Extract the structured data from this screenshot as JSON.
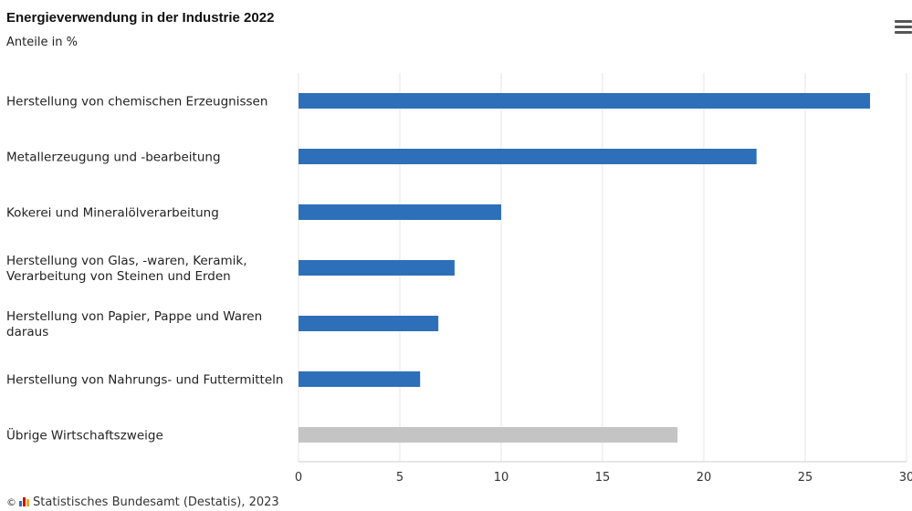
{
  "chart_data": {
    "type": "bar",
    "orientation": "horizontal",
    "title": "Energieverwendung in der Industrie 2022",
    "subtitle": "Anteile in %",
    "categories": [
      [
        "Herstellung von chemischen Erzeugnissen"
      ],
      [
        "Metallerzeugung und -bearbeitung"
      ],
      [
        "Kokerei und Mineralölverarbeitung"
      ],
      [
        "Herstellung von Glas, -waren, Keramik,",
        "Verarbeitung von Steinen und Erden"
      ],
      [
        "Herstellung von Papier, Pappe und Waren",
        "daraus"
      ],
      [
        "Herstellung von Nahrungs- und Futtermitteln"
      ],
      [
        "Übrige Wirtschaftszweige"
      ]
    ],
    "values": [
      28.2,
      22.6,
      10.0,
      7.7,
      6.9,
      6.0,
      18.7
    ],
    "bar_colors": [
      "#2e6fba",
      "#2e6fba",
      "#2e6fba",
      "#2e6fba",
      "#2e6fba",
      "#2e6fba",
      "#c4c4c4"
    ],
    "xlim": [
      0,
      30
    ],
    "xticks": [
      0,
      5,
      10,
      15,
      20,
      25,
      30
    ],
    "grid": true,
    "legend": "none"
  },
  "menu": {
    "icon": "hamburger-menu-icon"
  },
  "footer": {
    "copyright": "©",
    "source": "Statistisches Bundesamt (Destatis), 2023"
  },
  "colors": {
    "accent": "#2e6fba",
    "other": "#c4c4c4",
    "grid": "#e6e6e6"
  }
}
